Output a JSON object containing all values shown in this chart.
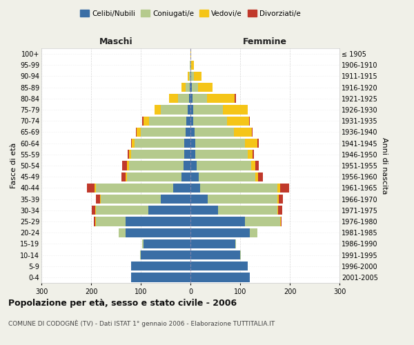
{
  "age_groups": [
    "0-4",
    "5-9",
    "10-14",
    "15-19",
    "20-24",
    "25-29",
    "30-34",
    "35-39",
    "40-44",
    "45-49",
    "50-54",
    "55-59",
    "60-64",
    "65-69",
    "70-74",
    "75-79",
    "80-84",
    "85-89",
    "90-94",
    "95-99",
    "100+"
  ],
  "birth_years": [
    "2001-2005",
    "1996-2000",
    "1991-1995",
    "1986-1990",
    "1981-1985",
    "1976-1980",
    "1971-1975",
    "1966-1970",
    "1961-1965",
    "1956-1960",
    "1951-1955",
    "1946-1950",
    "1941-1945",
    "1936-1940",
    "1931-1935",
    "1926-1930",
    "1921-1925",
    "1916-1920",
    "1911-1915",
    "1906-1910",
    "≤ 1905"
  ],
  "males": {
    "celibi": [
      120,
      120,
      100,
      95,
      130,
      130,
      85,
      60,
      35,
      18,
      14,
      12,
      12,
      10,
      8,
      5,
      3,
      2,
      0,
      0,
      0
    ],
    "coniugati": [
      0,
      0,
      1,
      2,
      15,
      60,
      105,
      120,
      155,
      110,
      110,
      108,
      100,
      90,
      75,
      55,
      22,
      8,
      3,
      1,
      0
    ],
    "vedovi": [
      0,
      0,
      0,
      0,
      0,
      2,
      1,
      2,
      3,
      3,
      4,
      4,
      6,
      8,
      12,
      12,
      18,
      8,
      3,
      1,
      0
    ],
    "divorziati": [
      0,
      0,
      0,
      0,
      0,
      2,
      8,
      8,
      15,
      8,
      10,
      3,
      2,
      2,
      2,
      0,
      0,
      0,
      0,
      0,
      0
    ]
  },
  "females": {
    "nubili": [
      120,
      115,
      100,
      90,
      120,
      110,
      55,
      35,
      20,
      16,
      12,
      10,
      10,
      8,
      5,
      5,
      4,
      3,
      2,
      0,
      0
    ],
    "coniugate": [
      0,
      0,
      1,
      2,
      15,
      70,
      120,
      140,
      155,
      115,
      110,
      105,
      100,
      80,
      68,
      60,
      30,
      12,
      5,
      2,
      0
    ],
    "vedove": [
      0,
      0,
      0,
      0,
      0,
      2,
      2,
      3,
      6,
      5,
      8,
      10,
      25,
      35,
      45,
      50,
      55,
      30,
      15,
      5,
      1
    ],
    "divorziate": [
      0,
      0,
      0,
      0,
      0,
      2,
      8,
      8,
      18,
      10,
      8,
      3,
      2,
      2,
      2,
      0,
      2,
      0,
      0,
      0,
      0
    ]
  },
  "colors": {
    "celibi_nubili": "#3a6ea5",
    "coniugati": "#b5ca8d",
    "vedovi": "#f5c518",
    "divorziati": "#c0392b"
  },
  "xlim": 300,
  "title": "Popolazione per età, sesso e stato civile - 2006",
  "subtitle": "COMUNE DI CODOGNÈ (TV) - Dati ISTAT 1° gennaio 2006 - Elaborazione TUTTITALIA.IT",
  "ylabel_left": "Fasce di età",
  "ylabel_right": "Anni di nascita",
  "xlabel_left": "Maschi",
  "xlabel_right": "Femmine",
  "bg_color": "#f0f0e8",
  "plot_bg_color": "#ffffff"
}
